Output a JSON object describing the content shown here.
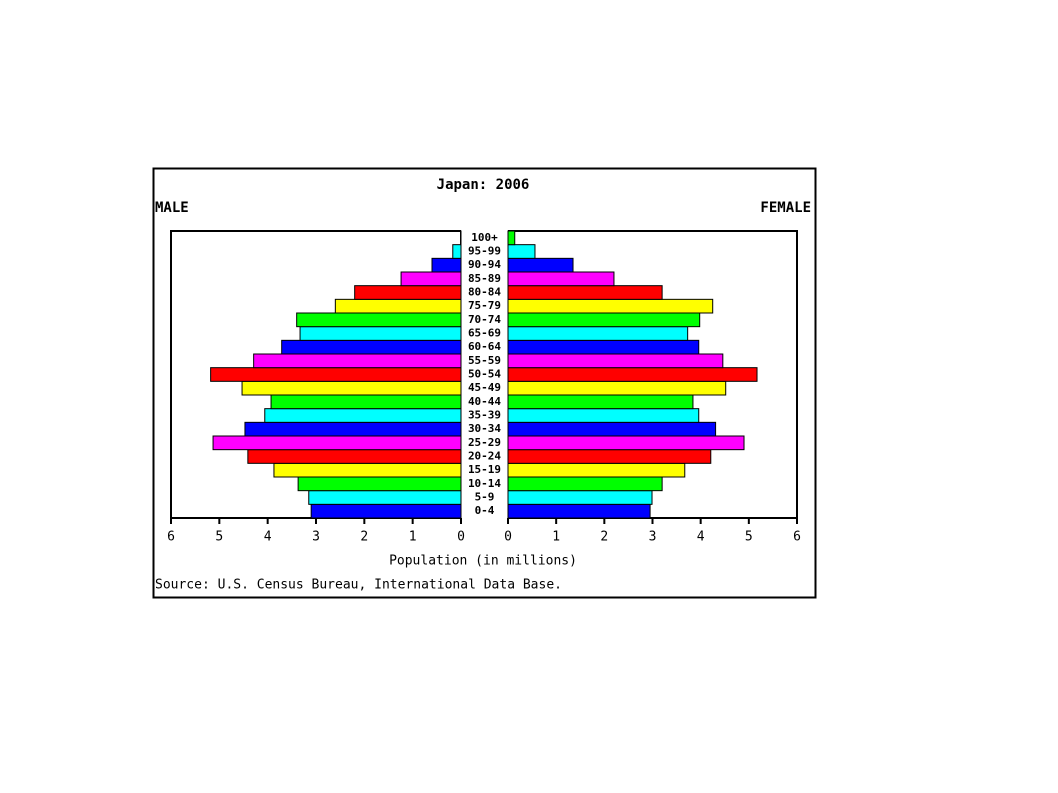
{
  "chart_data": {
    "type": "pyramid",
    "title": "Japan: 2006",
    "categories": [
      "0-4",
      "5-9",
      "10-14",
      "15-19",
      "20-24",
      "25-29",
      "30-34",
      "35-39",
      "40-44",
      "45-49",
      "50-54",
      "55-59",
      "60-64",
      "65-69",
      "70-74",
      "75-79",
      "80-84",
      "85-89",
      "90-94",
      "95-99",
      "100+"
    ],
    "colors": [
      "#0000ff",
      "#00ffff",
      "#00ff00",
      "#ffff00",
      "#ff0000",
      "#ff00ff",
      "#0000ff",
      "#00ffff",
      "#00ff00",
      "#ffff00",
      "#ff0000",
      "#ff00ff",
      "#0000ff",
      "#00ffff",
      "#00ff00",
      "#ffff00",
      "#ff0000",
      "#ff00ff",
      "#0000ff",
      "#00ffff",
      "#00ff00"
    ],
    "series": [
      {
        "name": "MALE",
        "values": [
          3.1,
          3.15,
          3.37,
          3.87,
          4.41,
          5.13,
          4.47,
          4.06,
          3.93,
          4.53,
          5.18,
          4.29,
          3.71,
          3.33,
          3.4,
          2.6,
          2.2,
          1.24,
          0.6,
          0.17,
          0.01
        ]
      },
      {
        "name": "FEMALE",
        "values": [
          2.95,
          2.99,
          3.2,
          3.67,
          4.21,
          4.9,
          4.31,
          3.96,
          3.84,
          4.52,
          5.17,
          4.46,
          3.96,
          3.73,
          3.98,
          4.25,
          3.2,
          2.2,
          1.35,
          0.56,
          0.14
        ]
      }
    ],
    "xlim": [
      0,
      6
    ],
    "xticks": [
      0,
      1,
      2,
      3,
      4,
      5,
      6
    ],
    "xlabel": "Population (in millions)",
    "source": "Source: U.S. Census Bureau, International Data Base."
  }
}
